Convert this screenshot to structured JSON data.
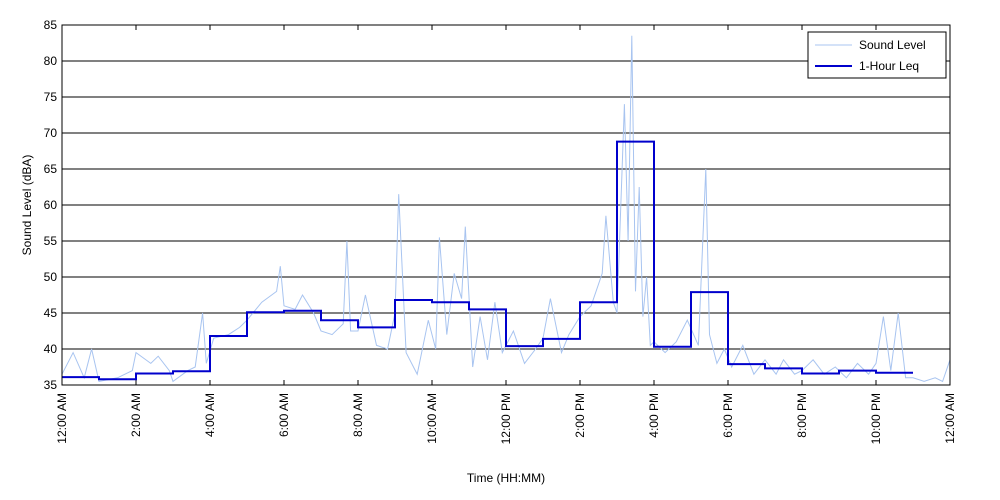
{
  "chart_data": {
    "type": "line",
    "xlabel": "Time (HH:MM)",
    "ylabel": "Sound Level (dBA)",
    "xlim": [
      0,
      24
    ],
    "ylim": [
      35,
      85
    ],
    "grid": "horizontal",
    "legend_position": "top-right",
    "x_ticks": [
      {
        "value": 0,
        "label": "12:00 AM"
      },
      {
        "value": 2,
        "label": "2:00 AM"
      },
      {
        "value": 4,
        "label": "4:00 AM"
      },
      {
        "value": 6,
        "label": "6:00 AM"
      },
      {
        "value": 8,
        "label": "8:00 AM"
      },
      {
        "value": 10,
        "label": "10:00 AM"
      },
      {
        "value": 12,
        "label": "12:00 PM"
      },
      {
        "value": 14,
        "label": "2:00 PM"
      },
      {
        "value": 16,
        "label": "4:00 PM"
      },
      {
        "value": 18,
        "label": "6:00 PM"
      },
      {
        "value": 20,
        "label": "8:00 PM"
      },
      {
        "value": 22,
        "label": "10:00 PM"
      },
      {
        "value": 24,
        "label": "12:00 AM"
      }
    ],
    "y_ticks": [
      35,
      40,
      45,
      50,
      55,
      60,
      65,
      70,
      75,
      80,
      85
    ],
    "series": [
      {
        "name": "Sound Level",
        "color": "#a8c4f0",
        "style": "thin-line",
        "points": [
          [
            0.0,
            36.5
          ],
          [
            0.3,
            39.5
          ],
          [
            0.6,
            36.0
          ],
          [
            0.8,
            40.0
          ],
          [
            1.0,
            35.5
          ],
          [
            1.5,
            36.0
          ],
          [
            1.9,
            37.0
          ],
          [
            2.0,
            39.5
          ],
          [
            2.4,
            38.0
          ],
          [
            2.6,
            39.0
          ],
          [
            2.9,
            37.0
          ],
          [
            3.0,
            35.5
          ],
          [
            3.4,
            37.0
          ],
          [
            3.6,
            37.5
          ],
          [
            3.8,
            45.0
          ],
          [
            3.9,
            38.0
          ],
          [
            4.1,
            41.5
          ],
          [
            4.5,
            42.0
          ],
          [
            4.8,
            43.0
          ],
          [
            5.0,
            44.0
          ],
          [
            5.4,
            46.5
          ],
          [
            5.8,
            48.0
          ],
          [
            5.9,
            51.5
          ],
          [
            6.0,
            46.0
          ],
          [
            6.3,
            45.5
          ],
          [
            6.5,
            47.5
          ],
          [
            6.8,
            45.0
          ],
          [
            7.0,
            42.5
          ],
          [
            7.3,
            42.0
          ],
          [
            7.6,
            43.5
          ],
          [
            7.7,
            55.0
          ],
          [
            7.8,
            42.5
          ],
          [
            8.0,
            42.5
          ],
          [
            8.2,
            47.5
          ],
          [
            8.5,
            40.5
          ],
          [
            8.8,
            40.0
          ],
          [
            9.0,
            45.0
          ],
          [
            9.1,
            61.5
          ],
          [
            9.3,
            39.5
          ],
          [
            9.6,
            36.5
          ],
          [
            9.9,
            44.0
          ],
          [
            10.1,
            40.0
          ],
          [
            10.2,
            55.5
          ],
          [
            10.4,
            42.0
          ],
          [
            10.6,
            50.5
          ],
          [
            10.8,
            47.0
          ],
          [
            10.9,
            57.0
          ],
          [
            11.1,
            37.5
          ],
          [
            11.3,
            44.5
          ],
          [
            11.5,
            38.5
          ],
          [
            11.7,
            46.5
          ],
          [
            11.9,
            39.5
          ],
          [
            12.0,
            40.5
          ],
          [
            12.2,
            42.5
          ],
          [
            12.5,
            38.0
          ],
          [
            12.8,
            40.0
          ],
          [
            13.0,
            41.5
          ],
          [
            13.2,
            47.0
          ],
          [
            13.5,
            39.5
          ],
          [
            13.7,
            42.0
          ],
          [
            14.0,
            44.5
          ],
          [
            14.3,
            46.0
          ],
          [
            14.6,
            50.5
          ],
          [
            14.7,
            58.5
          ],
          [
            14.9,
            46.5
          ],
          [
            15.0,
            45.0
          ],
          [
            15.2,
            74.0
          ],
          [
            15.3,
            55.0
          ],
          [
            15.4,
            83.5
          ],
          [
            15.5,
            48.0
          ],
          [
            15.6,
            62.5
          ],
          [
            15.7,
            44.5
          ],
          [
            15.8,
            50.0
          ],
          [
            15.9,
            40.5
          ],
          [
            16.0,
            41.0
          ],
          [
            16.3,
            39.5
          ],
          [
            16.6,
            41.0
          ],
          [
            16.9,
            44.0
          ],
          [
            17.2,
            40.5
          ],
          [
            17.4,
            65.0
          ],
          [
            17.5,
            42.0
          ],
          [
            17.7,
            38.0
          ],
          [
            17.9,
            40.0
          ],
          [
            18.1,
            37.5
          ],
          [
            18.4,
            40.5
          ],
          [
            18.7,
            36.5
          ],
          [
            19.0,
            38.5
          ],
          [
            19.3,
            36.5
          ],
          [
            19.5,
            38.5
          ],
          [
            19.8,
            36.5
          ],
          [
            20.0,
            37.0
          ],
          [
            20.3,
            38.5
          ],
          [
            20.6,
            36.5
          ],
          [
            20.9,
            37.5
          ],
          [
            21.2,
            36.0
          ],
          [
            21.5,
            38.0
          ],
          [
            21.8,
            36.5
          ],
          [
            22.0,
            38.0
          ],
          [
            22.2,
            44.5
          ],
          [
            22.4,
            37.0
          ],
          [
            22.6,
            45.0
          ],
          [
            22.8,
            36.0
          ],
          [
            23.0,
            36.0
          ],
          [
            23.3,
            35.5
          ],
          [
            23.6,
            36.0
          ],
          [
            23.8,
            35.5
          ],
          [
            24.0,
            38.5
          ]
        ]
      },
      {
        "name": "1-Hour Leq",
        "color": "#0000cc",
        "style": "step",
        "hourly_values": [
          36.1,
          35.8,
          36.6,
          36.9,
          41.8,
          45.1,
          45.3,
          44.0,
          43.0,
          46.8,
          46.5,
          45.5,
          40.4,
          41.4,
          46.5,
          68.8,
          40.3,
          47.9,
          37.9,
          37.3,
          36.6,
          37.0,
          36.7
        ]
      }
    ]
  }
}
